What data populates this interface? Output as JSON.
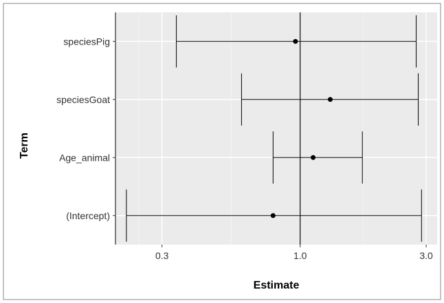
{
  "chart_data": {
    "type": "forest",
    "xlabel": "Estimate",
    "ylabel": "Term",
    "x_scale": "log",
    "xlim": [
      0.2,
      3.3
    ],
    "x_ticks": [
      0.3,
      1.0,
      3.0
    ],
    "x_tick_labels": [
      "0.3",
      "1.0",
      "3.0"
    ],
    "reference_line": 1.0,
    "grid": true,
    "terms": [
      {
        "label": "speciesPig",
        "estimate": 0.96,
        "lower": 0.34,
        "upper": 2.75
      },
      {
        "label": "speciesGoat",
        "estimate": 1.3,
        "lower": 0.6,
        "upper": 2.8
      },
      {
        "label": "Age_animal",
        "estimate": 1.12,
        "lower": 0.79,
        "upper": 1.72
      },
      {
        "label": "(Intercept)",
        "estimate": 0.79,
        "lower": 0.22,
        "upper": 2.88
      }
    ]
  }
}
